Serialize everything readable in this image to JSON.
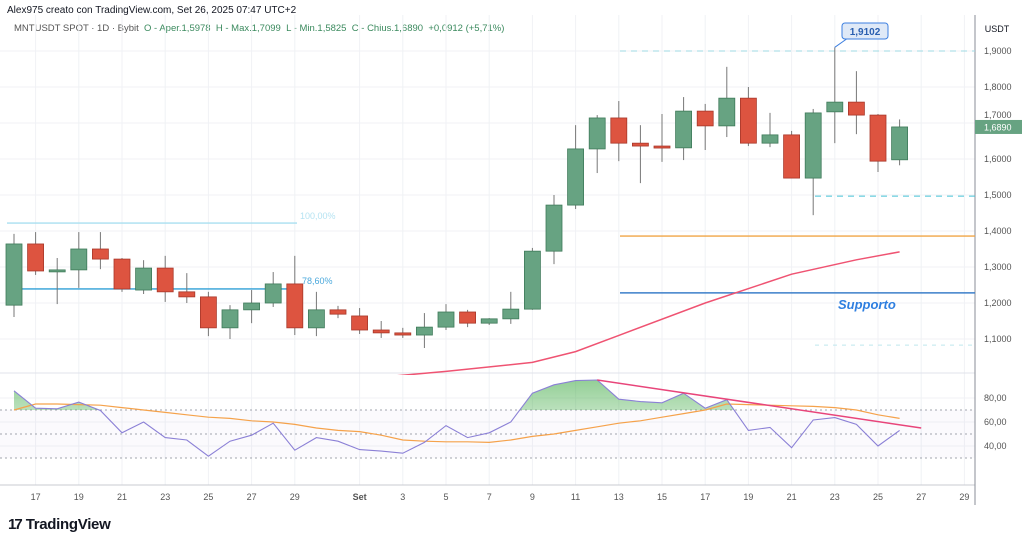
{
  "header": {
    "author_line": "Alex975 creato con TradingView.com, Set 26, 2025 07:47 UTC+2"
  },
  "legend": {
    "symbol": "MNTUSDT SPOT · 1D · Bybit",
    "open": "O - Aper.1,5978",
    "high": "H - Max.1,7099",
    "low": "L - Min.1,5825",
    "close": "C - Chius.1,6890",
    "change": "+0,0912 (+5,71%)"
  },
  "logo": {
    "text": "TradingView",
    "icon": "tradingview-logo-icon"
  },
  "colors": {
    "up": "#67a382",
    "down": "#dd5440",
    "ma": "#ef5372",
    "rsi": "#8b80d6",
    "rsi_ma": "#f5a24b",
    "fib": "#a9dff0",
    "level_blue": "#3c7fc9",
    "level_orange": "#f0a546",
    "dashed_cyan": "#46c2d6"
  },
  "chart_data": [
    {
      "type": "candlestick",
      "currency": "USDT",
      "ylim": [
        1.0,
        2.0
      ],
      "y_ticks": [
        "1,9000",
        "1,8000",
        "1,7000",
        "1,6000",
        "1,5000",
        "1,4000",
        "1,3000",
        "1,2000",
        "1,1000"
      ],
      "y_tick_values": [
        1.9,
        1.8,
        1.7,
        1.6,
        1.5,
        1.4,
        1.3,
        1.2,
        1.1
      ],
      "x_ticks": [
        "17",
        "19",
        "21",
        "23",
        "25",
        "27",
        "29",
        "Set",
        "3",
        "5",
        "7",
        "9",
        "11",
        "13",
        "15",
        "17",
        "19",
        "21",
        "23",
        "25",
        "27",
        "29"
      ],
      "x_tick_day_index": [
        1,
        3,
        5,
        7,
        9,
        11,
        13,
        16,
        18,
        20,
        22,
        24,
        26,
        28,
        30,
        32,
        34,
        36,
        38,
        40,
        42,
        44
      ],
      "start_date": "Aug 16",
      "candles": [
        [
          1.194,
          1.392,
          1.161,
          1.364
        ],
        [
          1.364,
          1.397,
          1.278,
          1.289
        ],
        [
          1.29,
          1.325,
          1.197,
          1.292
        ],
        [
          1.292,
          1.397,
          1.242,
          1.35
        ],
        [
          1.35,
          1.397,
          1.294,
          1.322
        ],
        [
          1.322,
          1.325,
          1.231,
          1.239
        ],
        [
          1.236,
          1.319,
          1.225,
          1.297
        ],
        [
          1.297,
          1.331,
          1.203,
          1.231
        ],
        [
          1.231,
          1.283,
          1.2,
          1.217
        ],
        [
          1.217,
          1.231,
          1.108,
          1.131
        ],
        [
          1.131,
          1.194,
          1.1,
          1.181
        ],
        [
          1.181,
          1.236,
          1.144,
          1.2
        ],
        [
          1.2,
          1.286,
          1.189,
          1.253
        ],
        [
          1.253,
          1.331,
          1.111,
          1.131
        ],
        [
          1.131,
          1.231,
          1.108,
          1.181
        ],
        [
          1.181,
          1.192,
          1.158,
          1.169
        ],
        [
          1.164,
          1.186,
          1.114,
          1.125
        ],
        [
          1.125,
          1.15,
          1.103,
          1.117
        ],
        [
          1.117,
          1.131,
          1.103,
          1.111
        ],
        [
          1.111,
          1.172,
          1.075,
          1.133
        ],
        [
          1.133,
          1.197,
          1.125,
          1.175
        ],
        [
          1.175,
          1.181,
          1.133,
          1.144
        ],
        [
          1.144,
          1.158,
          1.139,
          1.156
        ],
        [
          1.156,
          1.231,
          1.142,
          1.183
        ],
        [
          1.183,
          1.353,
          1.181,
          1.344
        ],
        [
          1.344,
          1.5,
          1.308,
          1.472
        ],
        [
          1.472,
          1.694,
          1.461,
          1.628
        ],
        [
          1.628,
          1.722,
          1.561,
          1.714
        ],
        [
          1.714,
          1.761,
          1.594,
          1.644
        ],
        [
          1.644,
          1.694,
          1.533,
          1.636
        ],
        [
          1.636,
          1.725,
          1.592,
          1.631
        ],
        [
          1.631,
          1.772,
          1.597,
          1.733
        ],
        [
          1.733,
          1.753,
          1.625,
          1.692
        ],
        [
          1.692,
          1.856,
          1.661,
          1.769
        ],
        [
          1.769,
          1.8,
          1.636,
          1.644
        ],
        [
          1.644,
          1.728,
          1.633,
          1.667
        ],
        [
          1.667,
          1.678,
          1.547,
          1.547
        ],
        [
          1.547,
          1.739,
          1.444,
          1.728
        ],
        [
          1.731,
          1.9102,
          1.644,
          1.758
        ],
        [
          1.758,
          1.844,
          1.669,
          1.722
        ],
        [
          1.722,
          1.725,
          1.564,
          1.594
        ],
        [
          1.5978,
          1.7099,
          1.5825,
          1.689
        ]
      ],
      "candle_fields": [
        "open",
        "high",
        "low",
        "close"
      ],
      "moving_average": {
        "day_index": [
          17,
          20,
          24,
          26,
          28,
          32,
          36,
          39,
          41
        ],
        "values": [
          0.994,
          1.01,
          1.035,
          1.065,
          1.11,
          1.2,
          1.28,
          1.32,
          1.342
        ]
      },
      "last_price_label": "1,6890",
      "high_annotation": "1,9102",
      "fib_levels": [
        {
          "label": "100,00%",
          "price": 1.422
        },
        {
          "label": "78,60%",
          "price": 1.239
        }
      ],
      "horizontal_levels": [
        {
          "price": 1.9,
          "style": "dashed-cyan"
        },
        {
          "price": 1.497,
          "style": "dashed-cyan"
        },
        {
          "price": 1.386,
          "style": "orange"
        },
        {
          "price": 1.228,
          "style": "blue",
          "label": "Supporto"
        },
        {
          "price": 1.083,
          "style": "dashed-faint"
        }
      ]
    },
    {
      "type": "line",
      "indicator": "RSI",
      "ylim": [
        25,
        100
      ],
      "y_ticks": [
        "80,00",
        "60,00",
        "40,00"
      ],
      "y_tick_values": [
        80,
        60,
        40
      ],
      "bands": [
        70,
        50,
        30
      ],
      "rsi": [
        86,
        71.5,
        71,
        76.6,
        69.6,
        51,
        60,
        47,
        45,
        31.5,
        44,
        49,
        59,
        36.5,
        47,
        44,
        37,
        35.8,
        34,
        43,
        57,
        47,
        51,
        60,
        84,
        91,
        94.5,
        95,
        79,
        77,
        76,
        84,
        71.5,
        78.6,
        53,
        55.5,
        38.6,
        61.7,
        63.7,
        58,
        40,
        53
      ],
      "rsi_ma": [
        70,
        75,
        75,
        74.5,
        74,
        72,
        70,
        68,
        66,
        64,
        63,
        61,
        60,
        58,
        55,
        53,
        52,
        49,
        45,
        44,
        43.5,
        43.5,
        43,
        45,
        48,
        50,
        53,
        56,
        59,
        61,
        64,
        67,
        70,
        75,
        74.5,
        74,
        73.5,
        73,
        72,
        70,
        66,
        63
      ],
      "trendline": {
        "from": [
          27,
          95
        ],
        "to": [
          42,
          55
        ]
      }
    }
  ]
}
